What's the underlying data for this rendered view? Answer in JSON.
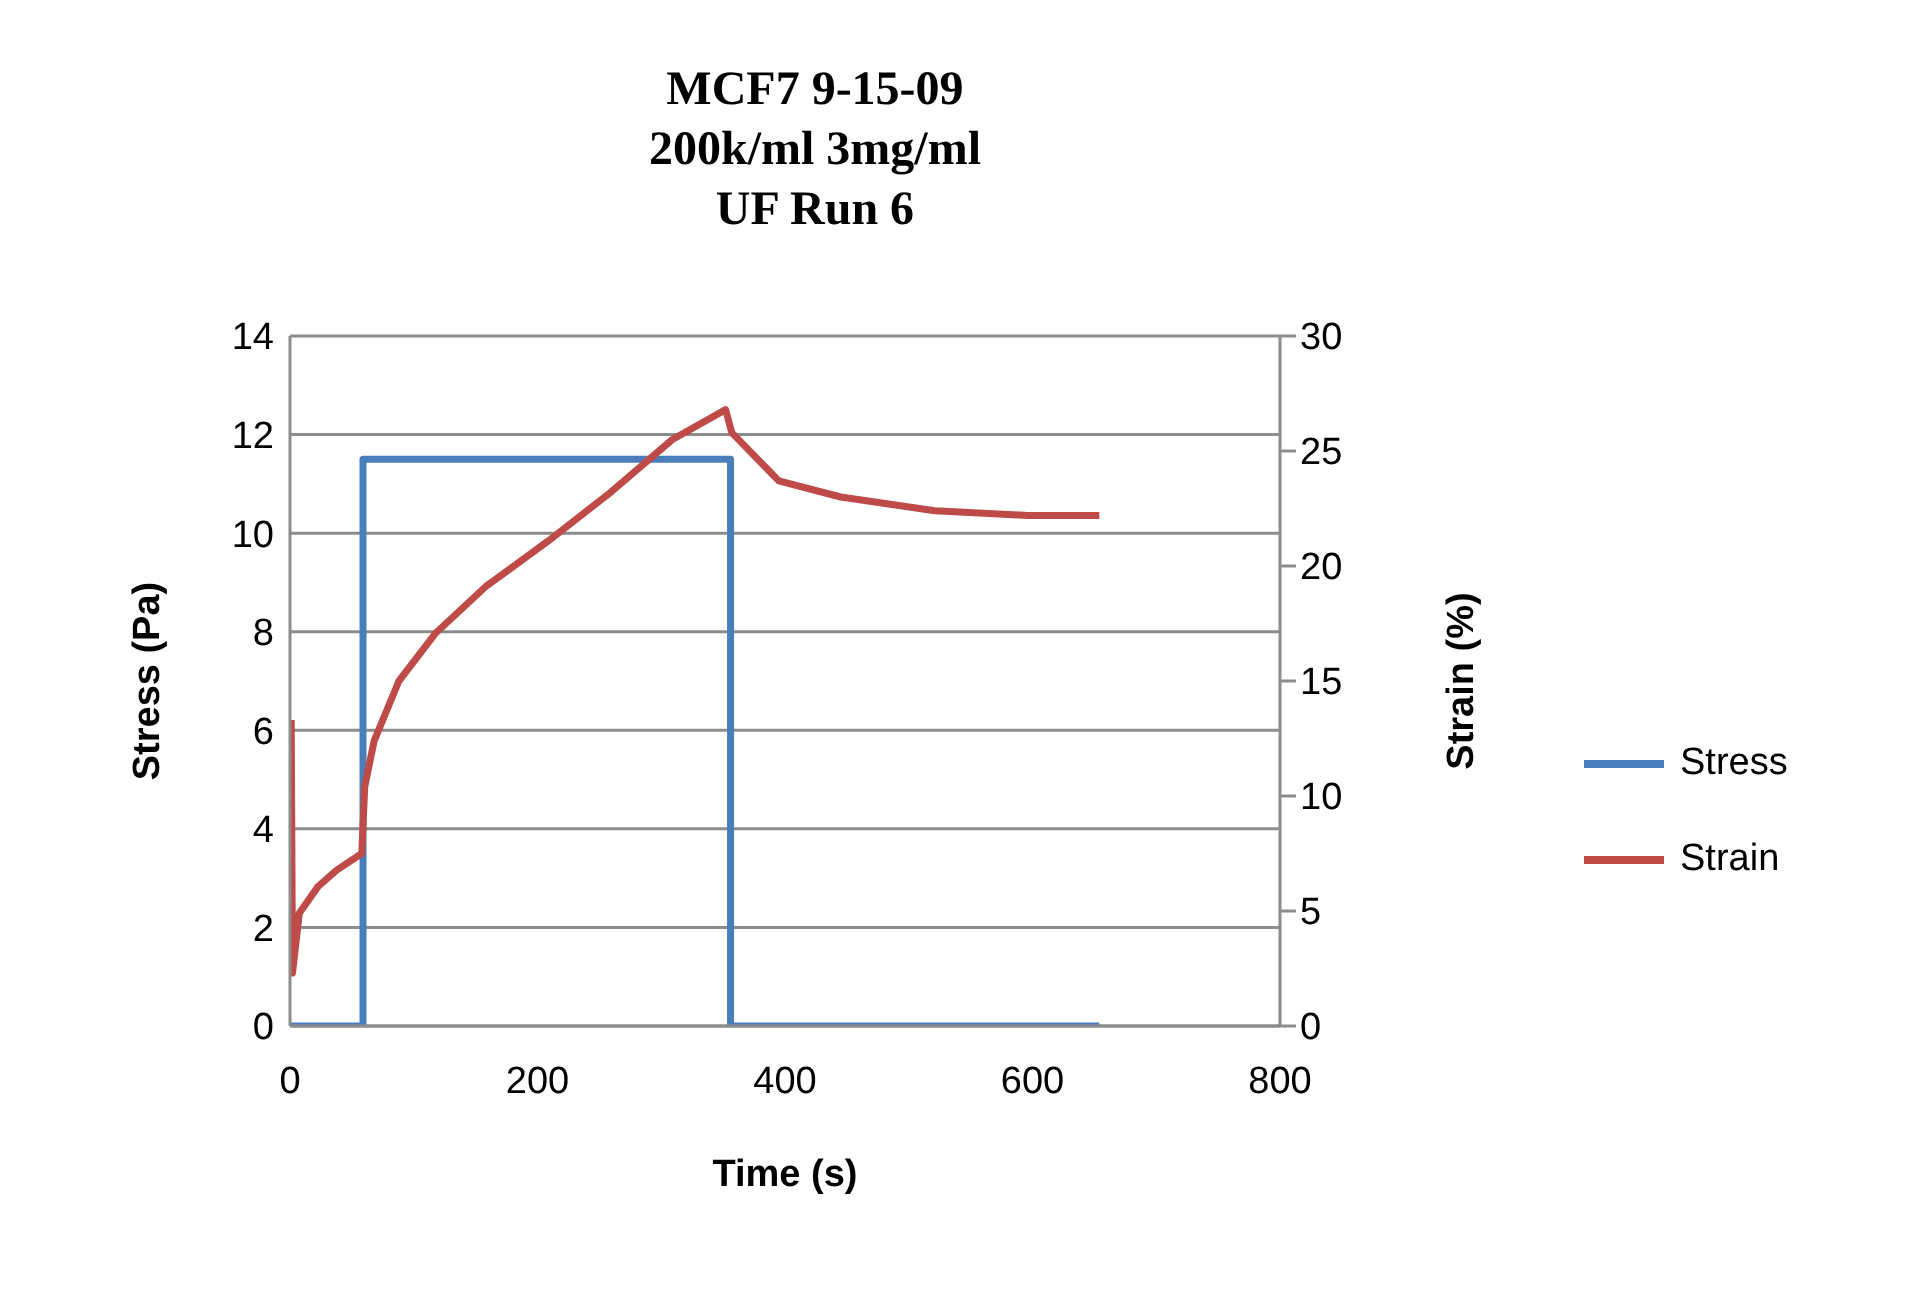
{
  "chart_data": {
    "type": "line",
    "title": "MCF7 9-15-09\n200k/ml 3mg/ml\nUF Run 6",
    "xlabel": "Time (s)",
    "ylabel": "Stress (Pa)",
    "y2label": "Strain (%)",
    "xlim": [
      0,
      800
    ],
    "xticks": [
      0,
      200,
      400,
      600,
      800
    ],
    "ylim": [
      0,
      14
    ],
    "yticks": [
      0,
      2,
      4,
      6,
      8,
      10,
      12,
      14
    ],
    "y2lim": [
      0,
      30
    ],
    "y2ticks": [
      0,
      5,
      10,
      15,
      20,
      25,
      30
    ],
    "grid": "y",
    "legend": "right",
    "marker": "none",
    "line_style": "solid",
    "series": [
      {
        "name": "Stress",
        "color": "#4a7ebb",
        "x": [
          0,
          59,
          59,
          356,
          356,
          654
        ],
        "values": [
          0,
          0,
          11.5,
          11.5,
          0,
          0
        ]
      },
      {
        "name": "Strain",
        "color": "#be4b48",
        "axis": "y2",
        "x": [
          1,
          2,
          7.5,
          22.6,
          37.7,
          58,
          60.4,
          68,
          88,
          118,
          158,
          209,
          259,
          309,
          352,
          357,
          395,
          445,
          521,
          596,
          654
        ],
        "values": [
          13.3,
          2.3,
          4.9,
          6.06,
          6.78,
          7.5,
          10.4,
          12.4,
          15.0,
          17.1,
          19.1,
          21.1,
          23.2,
          25.5,
          26.8,
          25.8,
          23.7,
          23.0,
          22.4,
          22.2,
          22.2
        ]
      }
    ]
  }
}
